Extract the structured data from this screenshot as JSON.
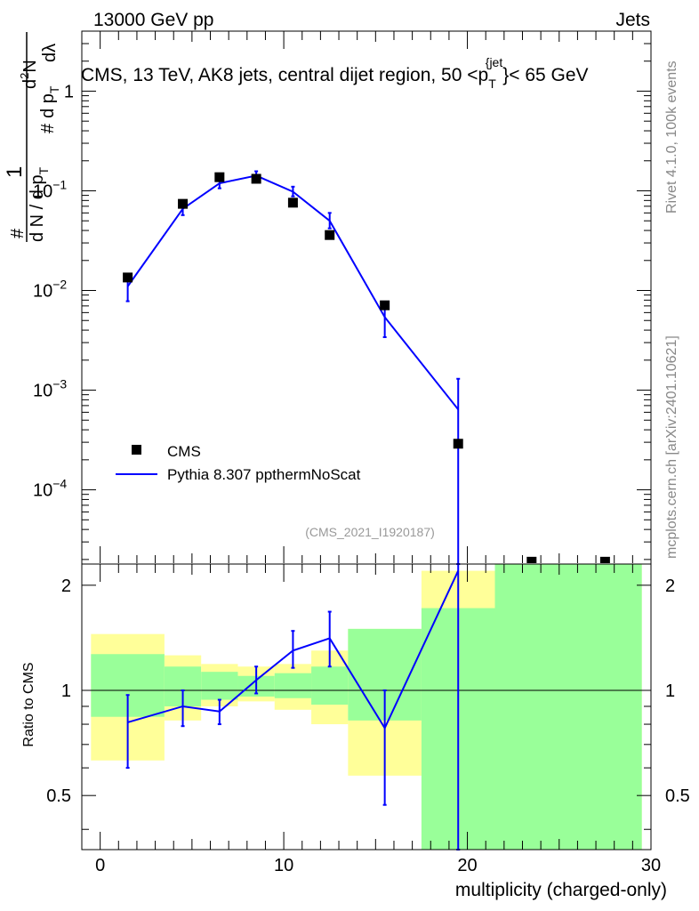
{
  "header": {
    "left": "13000 GeV pp",
    "right": "Jets"
  },
  "side_text": {
    "rivet": "Rivet 4.1.0,  100k events",
    "mcplots": "mcplots.cern.ch [arXiv:2401.10621]"
  },
  "main_plot": {
    "title_parts": [
      "CMS, 13 TeV, AK8 jets, central dijet region, 50 <p",
      "T",
      "{jet",
      "}< 65 GeV"
    ],
    "ylabel_parts": [
      "#",
      "1",
      "d N / d p",
      "T",
      "#",
      "d p",
      "T",
      "d",
      "2",
      "N",
      "dλ"
    ],
    "analysis_id": "(CMS_2021_I1920187)",
    "legend": [
      {
        "label": "CMS",
        "kind": "marker"
      },
      {
        "label": "Pythia 8.307 ppthermNoScat",
        "kind": "line",
        "color": "#0000ff"
      }
    ]
  },
  "ratio_plot": {
    "ylabel": "Ratio to CMS"
  },
  "chart_data": [
    {
      "type": "scatter",
      "name": "main",
      "yscale": "log",
      "ylim": [
        1.8e-05,
        4
      ],
      "xlim": [
        -1,
        30
      ],
      "yticks": [
        {
          "value": 1,
          "base": "1",
          "exp": ""
        },
        {
          "value": 0.1,
          "base": "10",
          "exp": "−1"
        },
        {
          "value": 0.01,
          "base": "10",
          "exp": "−2"
        },
        {
          "value": 0.001,
          "base": "10",
          "exp": "−3"
        },
        {
          "value": 0.0001,
          "base": "10",
          "exp": "−4"
        }
      ],
      "series": [
        {
          "name": "CMS",
          "style": "marker",
          "color": "#000000",
          "points": [
            {
              "x": 1.5,
              "y": 0.0135
            },
            {
              "x": 4.5,
              "y": 0.074
            },
            {
              "x": 6.5,
              "y": 0.137
            },
            {
              "x": 8.5,
              "y": 0.132
            },
            {
              "x": 10.5,
              "y": 0.076
            },
            {
              "x": 12.5,
              "y": 0.036
            },
            {
              "x": 15.5,
              "y": 0.0071
            },
            {
              "x": 19.5,
              "y": 0.00029
            },
            {
              "x": 23.5,
              "y": 1.9e-05
            },
            {
              "x": 27.5,
              "y": 1.9e-05
            }
          ]
        },
        {
          "name": "Pythia 8.307 ppthermNoScat",
          "style": "line",
          "color": "#0000ff",
          "points": [
            {
              "x": 1.5,
              "y": 0.011,
              "lo": 0.0078,
              "hi": 0.0125
            },
            {
              "x": 4.5,
              "y": 0.066,
              "lo": 0.057,
              "hi": 0.076
            },
            {
              "x": 6.5,
              "y": 0.119,
              "lo": 0.106,
              "hi": 0.133
            },
            {
              "x": 8.5,
              "y": 0.142,
              "lo": 0.128,
              "hi": 0.157
            },
            {
              "x": 10.5,
              "y": 0.098,
              "lo": 0.088,
              "hi": 0.11
            },
            {
              "x": 12.5,
              "y": 0.05,
              "lo": 0.042,
              "hi": 0.06
            },
            {
              "x": 15.5,
              "y": 0.0054,
              "lo": 0.0034,
              "hi": 0.0074
            },
            {
              "x": 19.5,
              "y": 0.00064,
              "lo": 1.8e-05,
              "hi": 0.0013
            }
          ]
        }
      ]
    },
    {
      "type": "line",
      "name": "ratio",
      "xlabel": "multiplicity (charged-only)",
      "ylabel": "Ratio to CMS",
      "ylim": [
        0.35,
        2.3
      ],
      "xlim": [
        -1,
        30
      ],
      "xticks": [
        0,
        10,
        20,
        30
      ],
      "yticks": [
        0.5,
        1,
        2
      ],
      "reference_line": 1,
      "bands": [
        {
          "x0": -0.5,
          "x1": 3.5,
          "y0": 0.63,
          "y1": 1.45,
          "y0_inner": 0.84,
          "y1_inner": 1.27
        },
        {
          "x0": 3.5,
          "x1": 5.5,
          "y0": 0.82,
          "y1": 1.26,
          "y0_inner": 0.9,
          "y1_inner": 1.17
        },
        {
          "x0": 5.5,
          "x1": 7.5,
          "y0": 0.9,
          "y1": 1.19,
          "y0_inner": 0.94,
          "y1_inner": 1.13
        },
        {
          "x0": 7.5,
          "x1": 9.5,
          "y0": 0.93,
          "y1": 1.17,
          "y0_inner": 0.96,
          "y1_inner": 1.1
        },
        {
          "x0": 9.5,
          "x1": 11.5,
          "y0": 0.88,
          "y1": 1.19,
          "y0_inner": 0.95,
          "y1_inner": 1.12
        },
        {
          "x0": 11.5,
          "x1": 13.5,
          "y0": 0.8,
          "y1": 1.3,
          "y0_inner": 0.91,
          "y1_inner": 1.17
        },
        {
          "x0": 13.5,
          "x1": 17.5,
          "y0": 0.57,
          "y1": 1.5,
          "y0_inner": 0.82,
          "y1_inner": 1.5
        },
        {
          "x0": 17.5,
          "x1": 21.5,
          "y0": 0.35,
          "y1": 2.2,
          "y0_inner": 0.35,
          "y1_inner": 1.72
        },
        {
          "x0": 21.5,
          "x1": 29.5,
          "y0": 0.35,
          "y1": 2.3,
          "y0_inner": 0.35,
          "y1_inner": 2.3
        }
      ],
      "series": [
        {
          "name": "Pythia 8.307 ppthermNoScat / CMS",
          "color": "#0000ff",
          "points": [
            {
              "x": 1.5,
              "y": 0.81,
              "lo": 0.6,
              "hi": 0.97
            },
            {
              "x": 4.5,
              "y": 0.9,
              "lo": 0.79,
              "hi": 1.0
            },
            {
              "x": 6.5,
              "y": 0.87,
              "lo": 0.8,
              "hi": 0.94
            },
            {
              "x": 8.5,
              "y": 1.07,
              "lo": 0.98,
              "hi": 1.17
            },
            {
              "x": 10.5,
              "y": 1.3,
              "lo": 1.16,
              "hi": 1.48
            },
            {
              "x": 12.5,
              "y": 1.41,
              "lo": 1.17,
              "hi": 1.68
            },
            {
              "x": 15.5,
              "y": 0.78,
              "lo": 0.47,
              "hi": 1.0
            },
            {
              "x": 19.5,
              "y": 2.2,
              "lo": 0.35,
              "hi": 2.3
            }
          ]
        }
      ]
    }
  ]
}
